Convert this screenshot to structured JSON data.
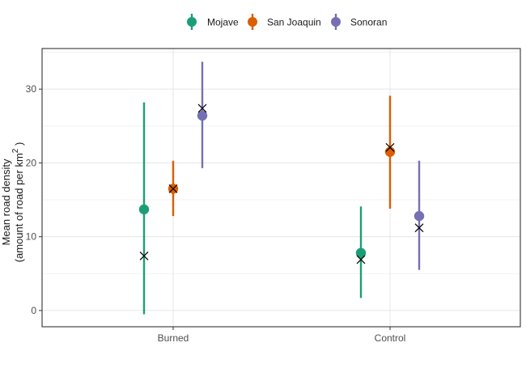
{
  "chart_data": {
    "type": "scatter",
    "categories": [
      "Burned",
      "Control"
    ],
    "ylabel_line1": "Mean road density",
    "ylabel_line2_prefix": "(amount of road per  km",
    "ylabel_line2_sup": "2",
    "ylabel_line2_suffix": " )",
    "ylim": [
      -2.2,
      35.5
    ],
    "yticks": [
      0,
      10,
      20,
      30
    ],
    "grid": true,
    "legend_position": "top",
    "series": [
      {
        "name": "Mojave",
        "color": "#1b9e77",
        "mean": [
          13.7,
          7.8
        ],
        "lower": [
          -0.5,
          1.7
        ],
        "upper": [
          28.2,
          14.1
        ],
        "observed": [
          7.4,
          6.9
        ]
      },
      {
        "name": "San Joaquin",
        "color": "#d95f02",
        "mean": [
          16.5,
          21.5
        ],
        "lower": [
          12.8,
          13.8
        ],
        "upper": [
          20.3,
          29.1
        ],
        "observed": [
          16.5,
          22.1
        ]
      },
      {
        "name": "Sonoran",
        "color": "#7570b3",
        "mean": [
          26.4,
          12.8
        ],
        "lower": [
          19.3,
          5.5
        ],
        "upper": [
          33.7,
          20.3
        ],
        "observed": [
          27.4,
          11.2
        ]
      }
    ]
  }
}
